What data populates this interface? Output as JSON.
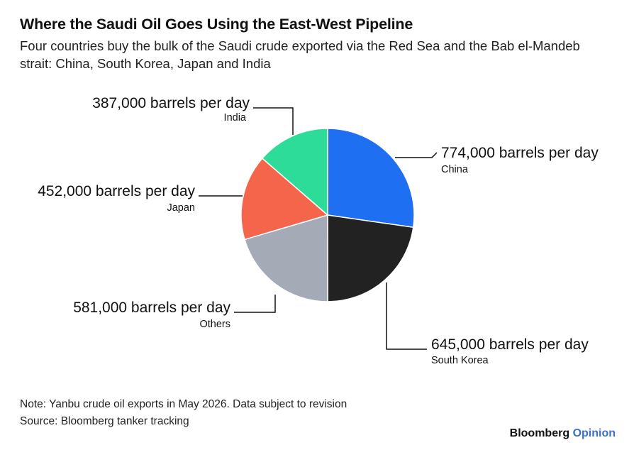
{
  "title": "Where the Saudi Oil Goes Using the East-West Pipeline",
  "subtitle": "Four countries buy the bulk of the Saudi crude exported via the Red Sea and the Bab el-Mandeb strait: China, South Korea, Japan and India",
  "note": "Note: Yanbu crude oil exports in May 2026. Data subject to revision",
  "source": "Source: Bloomberg tanker tracking",
  "brand": {
    "name": "Bloomberg",
    "product": "Opinion"
  },
  "chart_data": {
    "type": "pie",
    "unit": "barrels per day",
    "slices": [
      {
        "name": "China",
        "value": 774000,
        "label": "774,000 barrels per day",
        "color": "#1f6ff2"
      },
      {
        "name": "South Korea",
        "value": 645000,
        "label": "645,000 barrels per day",
        "color": "#222222"
      },
      {
        "name": "Others",
        "value": 581000,
        "label": "581,000 barrels per day",
        "color": "#a4aab6"
      },
      {
        "name": "Japan",
        "value": 452000,
        "label": "452,000 barrels per day",
        "color": "#f4654c"
      },
      {
        "name": "India",
        "value": 387000,
        "label": "387,000 barrels per day",
        "color": "#2edc9a"
      }
    ]
  }
}
